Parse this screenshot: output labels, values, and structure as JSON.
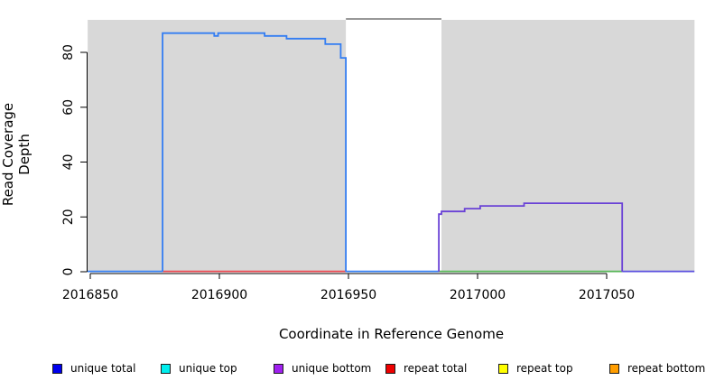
{
  "chart_data": {
    "type": "line",
    "title": "",
    "xlabel": "Coordinate in Reference Genome",
    "ylabel": "Read Coverage Depth",
    "xlim": [
      2016849,
      2017084
    ],
    "ylim": [
      0,
      92
    ],
    "x_ticks": [
      2016850,
      2016900,
      2016950,
      2017000,
      2017050
    ],
    "y_ticks": [
      0,
      20,
      40,
      60,
      80
    ],
    "grid": false,
    "legend_position": "bottom",
    "background_regions": [
      {
        "name": "shaded-region-left",
        "x_from": 2016849,
        "x_to": 2016949,
        "color": "#d8d8d8"
      },
      {
        "name": "shaded-region-right",
        "x_from": 2016986,
        "x_to": 2017084,
        "color": "#d8d8d8"
      }
    ],
    "gap_top_border": {
      "x_from": 2016949,
      "x_to": 2016986,
      "color": "#8a8a8a"
    },
    "series": [
      {
        "name": "unique total",
        "color": "#337df2",
        "points": [
          [
            2016878,
            0
          ],
          [
            2016878,
            87
          ],
          [
            2016898,
            87
          ],
          [
            2016898,
            86
          ],
          [
            2016899.5,
            86
          ],
          [
            2016899.5,
            87
          ],
          [
            2016917.5,
            87
          ],
          [
            2016917.5,
            86
          ],
          [
            2016926,
            86
          ],
          [
            2016926,
            85
          ],
          [
            2016941,
            85
          ],
          [
            2016941,
            83
          ],
          [
            2016947,
            83
          ],
          [
            2016947,
            78
          ],
          [
            2016949,
            78
          ],
          [
            2016949,
            0
          ]
        ]
      },
      {
        "name": "unique bottom",
        "color": "#6a42d6",
        "points": [
          [
            2016985,
            0
          ],
          [
            2016985,
            21
          ],
          [
            2016986,
            21
          ],
          [
            2016986,
            22
          ],
          [
            2016995,
            22
          ],
          [
            2016995,
            23
          ],
          [
            2017001,
            23
          ],
          [
            2017001,
            24
          ],
          [
            2017018,
            24
          ],
          [
            2017018,
            25
          ],
          [
            2017056,
            25
          ],
          [
            2017056,
            0
          ]
        ]
      }
    ],
    "baseline_segments": [
      {
        "name": "zero-left",
        "value": 0,
        "x_from": 2016849,
        "x_to": 2016878,
        "color": "#337df2"
      },
      {
        "name": "zero-under-blue",
        "value": 0,
        "x_from": 2016878,
        "x_to": 2016949,
        "color": "#e8454e"
      },
      {
        "name": "zero-gap",
        "value": 0,
        "x_from": 2016949,
        "x_to": 2016985,
        "color": "#337df2"
      },
      {
        "name": "zero-under-purple",
        "value": 0,
        "x_from": 2016985,
        "x_to": 2017056,
        "color": "#57b657"
      },
      {
        "name": "zero-right",
        "value": 0,
        "x_from": 2017056,
        "x_to": 2017084,
        "color": "#5b50e0"
      }
    ]
  },
  "legend": {
    "items": [
      {
        "label": "unique total",
        "color": "#0000ee"
      },
      {
        "label": "unique top",
        "color": "#00eeee"
      },
      {
        "label": "unique bottom",
        "color": "#a020f0"
      },
      {
        "label": "repeat total",
        "color": "#ee0000"
      },
      {
        "label": "repeat top",
        "color": "#ffff00"
      },
      {
        "label": "repeat bottom",
        "color": "#ff9d00"
      }
    ]
  }
}
